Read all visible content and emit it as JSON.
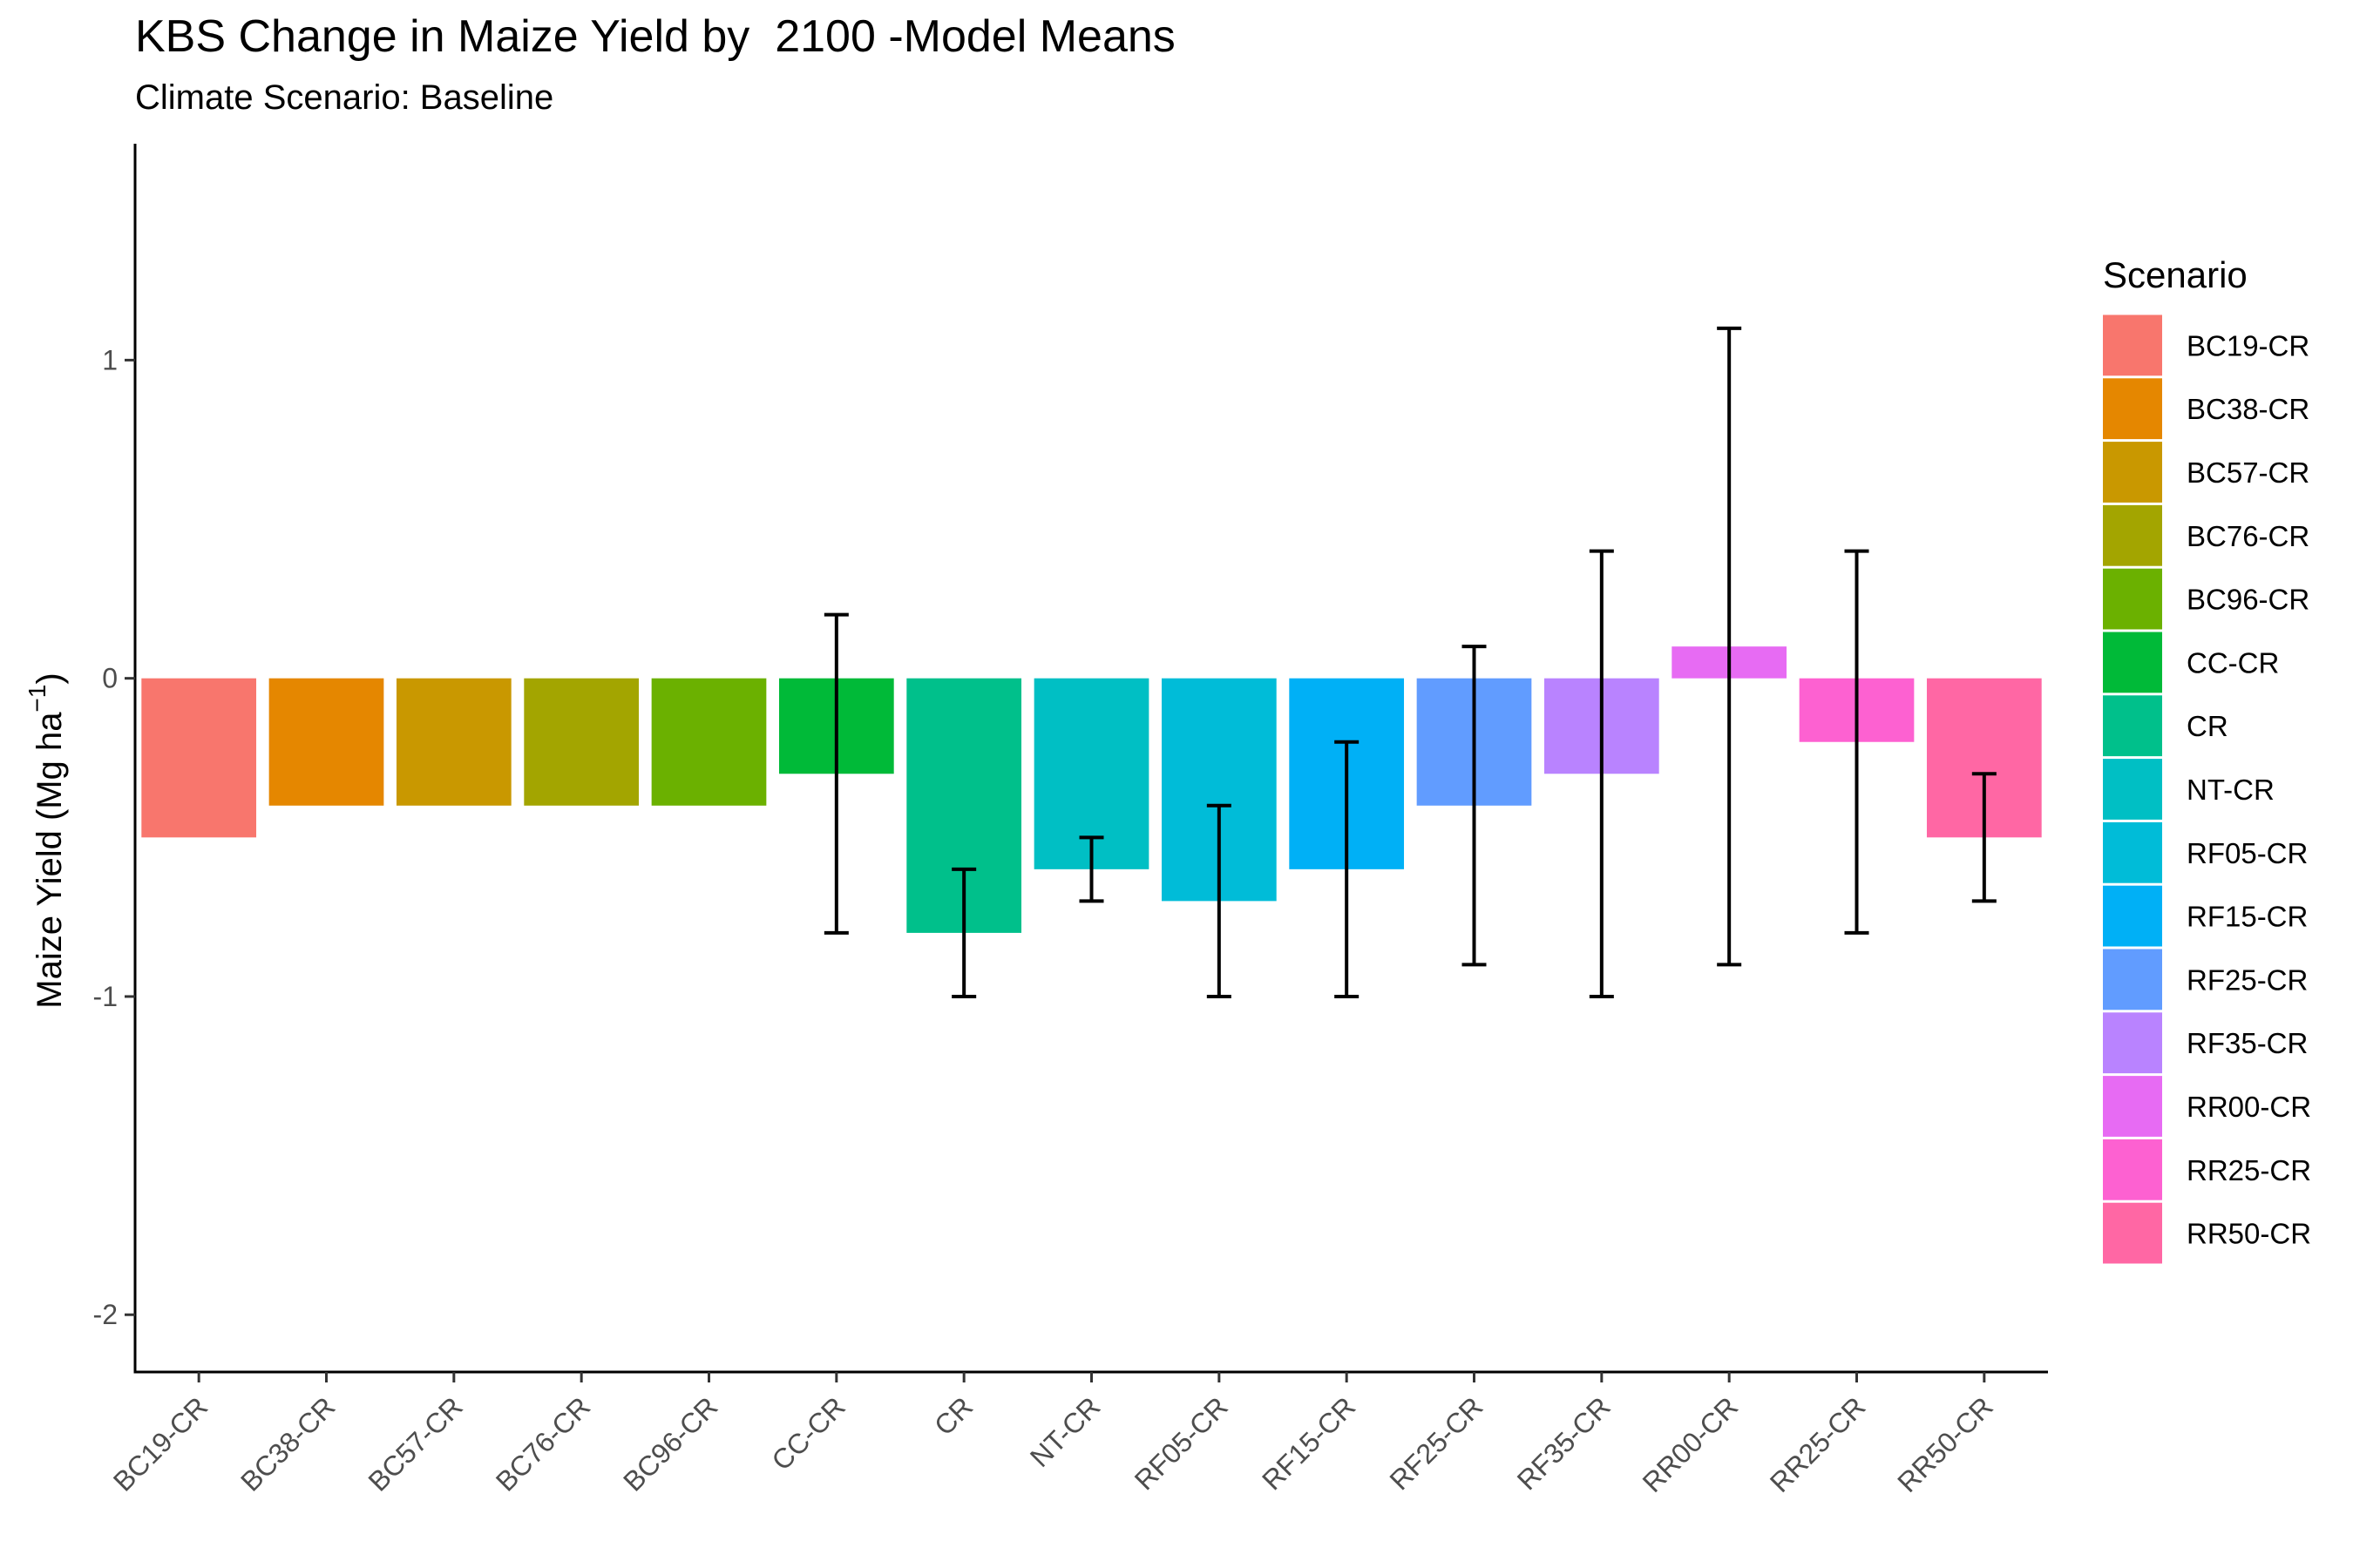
{
  "chart_data": {
    "type": "bar",
    "title": "KBS Change in Maize Yield by  2100 -Model Means",
    "subtitle": "Climate Scenario: Baseline",
    "ylabel": "Maize Yield (Mg ha",
    "ylabel_superscript": "−1",
    "ylabel_close": ")",
    "xlabel": "",
    "ylim": [
      -2.18,
      1.68
    ],
    "yticks": [
      1,
      0,
      -1,
      -2
    ],
    "ytick_labels": [
      "1",
      "0",
      "-1",
      "-2"
    ],
    "grid": false,
    "legend_title": "Scenario",
    "legend_position": "right",
    "categories": [
      "BC19-CR",
      "BC38-CR",
      "BC57-CR",
      "BC76-CR",
      "BC96-CR",
      "CC-CR",
      "CR",
      "NT-CR",
      "RF05-CR",
      "RF15-CR",
      "RF25-CR",
      "RF35-CR",
      "RR00-CR",
      "RR25-CR",
      "RR50-CR"
    ],
    "values": [
      -0.5,
      -0.4,
      -0.4,
      -0.4,
      -0.4,
      -0.3,
      -0.8,
      -0.6,
      -0.7,
      -0.6,
      -0.4,
      -0.3,
      0.1,
      -0.2,
      -0.5
    ],
    "error_low": [
      null,
      null,
      null,
      null,
      null,
      -0.8,
      -1.0,
      -0.7,
      -1.0,
      -1.0,
      -0.9,
      -1.0,
      -0.9,
      -0.8,
      -0.7
    ],
    "error_high": [
      null,
      null,
      null,
      null,
      null,
      0.2,
      -0.6,
      -0.5,
      -0.4,
      -0.2,
      0.1,
      0.4,
      1.1,
      0.4,
      -0.3
    ],
    "colors": [
      "#F8766D",
      "#E58700",
      "#C99800",
      "#A3A500",
      "#6BB100",
      "#00BA38",
      "#00C08B",
      "#00BFC4",
      "#00BCD8",
      "#00B0F6",
      "#619CFF",
      "#B983FF",
      "#E76BF3",
      "#FD61D1",
      "#FF67A4"
    ]
  }
}
